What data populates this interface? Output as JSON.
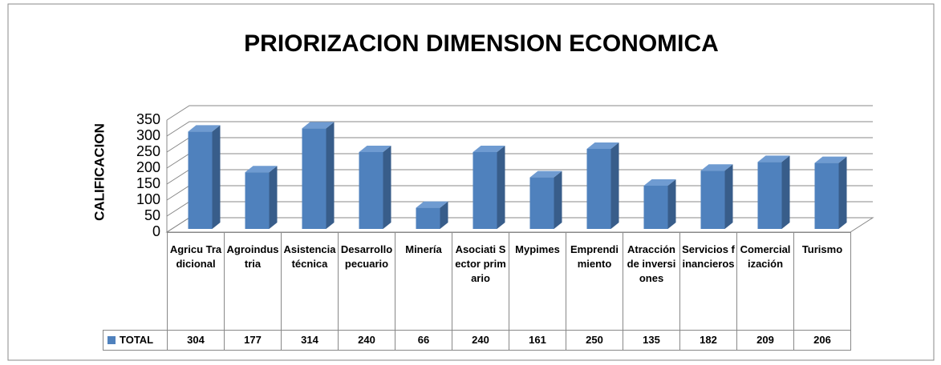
{
  "chart_data": {
    "type": "bar",
    "title": "PRIORIZACION DIMENSION ECONOMICA",
    "y_label": "CALIFICACION",
    "categories": [
      "Agricu Tradicional",
      "Agroindustria",
      "Asistencia técnica",
      "Desarrollo pecuario",
      "Minería",
      "Asociati Sector primario",
      "Mypimes",
      "Emprendimiento",
      "Atracción de inversiones",
      "Servicios financieros",
      "Comercialización",
      "Turismo"
    ],
    "series": [
      {
        "name": "TOTAL",
        "color": "#4f81bd",
        "values": [
          304,
          177,
          314,
          240,
          66,
          240,
          161,
          250,
          135,
          182,
          209,
          206
        ]
      }
    ],
    "ylim": [
      0,
      350
    ],
    "yticks": [
      0,
      50,
      100,
      150,
      200,
      250,
      300,
      350
    ],
    "grid": true
  }
}
